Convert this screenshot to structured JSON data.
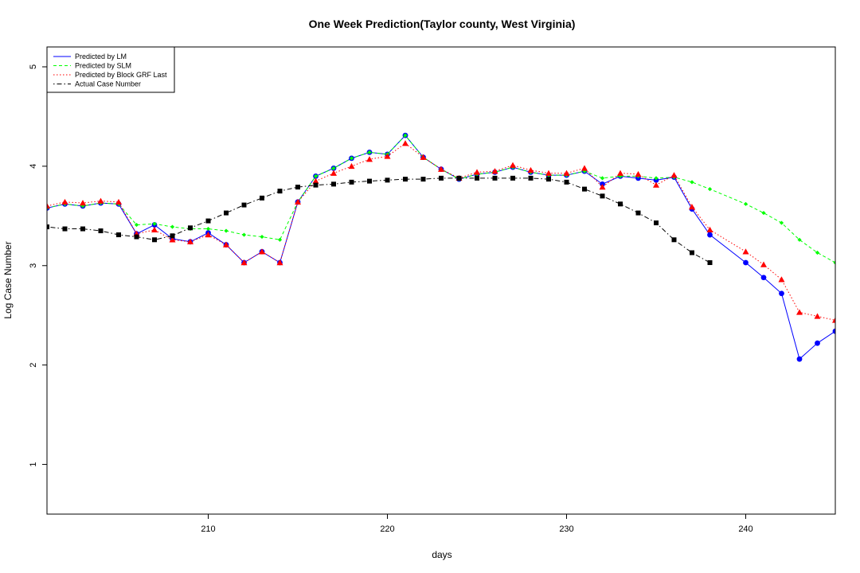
{
  "chart_data": {
    "type": "line",
    "title": "One Week Prediction(Taylor county, West Virginia)",
    "xlabel": "days",
    "ylabel": "Log Case Number",
    "xlim": [
      201,
      245
    ],
    "ylim": [
      0.5,
      5.2
    ],
    "xticks": [
      210,
      220,
      230,
      240
    ],
    "yticks": [
      1,
      2,
      3,
      4,
      5
    ],
    "grid": false,
    "legend_position": "top-left",
    "series": [
      {
        "name": "Predicted by LM",
        "color": "#0000ff",
        "line": "solid",
        "marker": "circle",
        "x": [
          201,
          202,
          203,
          204,
          205,
          206,
          207,
          208,
          209,
          210,
          211,
          212,
          213,
          214,
          215,
          216,
          217,
          218,
          219,
          220,
          221,
          222,
          223,
          224,
          225,
          226,
          227,
          228,
          229,
          230,
          231,
          232,
          233,
          234,
          235,
          236,
          237,
          238,
          240,
          241,
          242,
          243,
          244,
          245
        ],
        "y": [
          3.58,
          3.62,
          3.6,
          3.63,
          3.62,
          3.32,
          3.41,
          3.27,
          3.24,
          3.33,
          3.21,
          3.03,
          3.14,
          3.03,
          3.64,
          3.9,
          3.98,
          4.08,
          4.14,
          4.12,
          4.31,
          4.09,
          3.97,
          3.87,
          3.92,
          3.94,
          3.99,
          3.94,
          3.91,
          3.91,
          3.95,
          3.82,
          3.9,
          3.88,
          3.86,
          3.89,
          3.57,
          3.31,
          3.03,
          2.88,
          2.72,
          2.06,
          2.22,
          2.34
        ]
      },
      {
        "name": "Predicted by SLM",
        "color": "#00ff00",
        "line": "dashed",
        "marker": "diamond",
        "x": [
          201,
          202,
          203,
          204,
          205,
          206,
          207,
          208,
          209,
          210,
          211,
          212,
          213,
          214,
          215,
          216,
          217,
          218,
          219,
          220,
          221,
          222,
          223,
          224,
          225,
          226,
          227,
          228,
          229,
          230,
          231,
          232,
          233,
          234,
          235,
          236,
          237,
          238,
          240,
          241,
          242,
          243,
          244,
          245
        ],
        "y": [
          3.58,
          3.62,
          3.6,
          3.63,
          3.62,
          3.41,
          3.42,
          3.39,
          3.37,
          3.37,
          3.35,
          3.31,
          3.29,
          3.26,
          3.64,
          3.9,
          3.98,
          4.08,
          4.14,
          4.12,
          4.31,
          4.09,
          3.97,
          3.87,
          3.92,
          3.94,
          3.99,
          3.94,
          3.91,
          3.91,
          3.95,
          3.88,
          3.9,
          3.9,
          3.88,
          3.89,
          3.84,
          3.77,
          3.62,
          3.53,
          3.43,
          3.26,
          3.13,
          3.03
        ]
      },
      {
        "name": "Predicted by Block GRF Last",
        "color": "#ff0000",
        "line": "dotted",
        "marker": "triangle",
        "x": [
          201,
          202,
          203,
          204,
          205,
          206,
          207,
          208,
          209,
          210,
          211,
          212,
          213,
          214,
          215,
          216,
          217,
          218,
          219,
          220,
          221,
          222,
          223,
          224,
          225,
          226,
          227,
          228,
          229,
          230,
          231,
          232,
          233,
          234,
          235,
          236,
          237,
          238,
          240,
          241,
          242,
          243,
          244,
          245
        ],
        "y": [
          3.6,
          3.64,
          3.63,
          3.65,
          3.64,
          3.32,
          3.36,
          3.26,
          3.24,
          3.31,
          3.21,
          3.03,
          3.14,
          3.03,
          3.64,
          3.85,
          3.93,
          4.0,
          4.07,
          4.1,
          4.23,
          4.09,
          3.97,
          3.88,
          3.94,
          3.95,
          4.01,
          3.96,
          3.93,
          3.93,
          3.98,
          3.79,
          3.93,
          3.92,
          3.81,
          3.91,
          3.59,
          3.36,
          3.14,
          3.01,
          2.86,
          2.53,
          2.49,
          2.45
        ]
      },
      {
        "name": "Actual Case Number",
        "color": "#000000",
        "line": "dotdash",
        "marker": "square",
        "x": [
          201,
          202,
          203,
          204,
          205,
          206,
          207,
          208,
          209,
          210,
          211,
          212,
          213,
          214,
          215,
          216,
          217,
          218,
          219,
          220,
          221,
          222,
          223,
          224,
          225,
          226,
          227,
          228,
          229,
          230,
          231,
          232,
          233,
          234,
          235,
          236,
          237,
          238
        ],
        "y": [
          3.39,
          3.37,
          3.37,
          3.35,
          3.31,
          3.29,
          3.26,
          3.3,
          3.38,
          3.45,
          3.53,
          3.61,
          3.68,
          3.75,
          3.79,
          3.81,
          3.82,
          3.84,
          3.85,
          3.86,
          3.87,
          3.87,
          3.88,
          3.88,
          3.88,
          3.88,
          3.88,
          3.88,
          3.87,
          3.84,
          3.77,
          3.7,
          3.62,
          3.53,
          3.43,
          3.26,
          3.13,
          3.03
        ]
      }
    ]
  }
}
